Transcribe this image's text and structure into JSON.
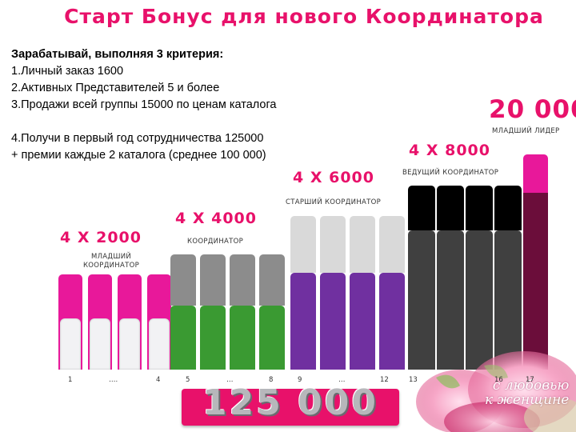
{
  "title": "Старт Бонус для нового Координатора",
  "criteria": {
    "heading": "Зарабатывай, выполняя 3 критерия:",
    "lines": [
      "1.Личный заказ 1600",
      "2.Активных Представителей 5 и более",
      "3.Продажи всей группы 15000 по ценам каталога"
    ],
    "extra": [
      "4.Получи в первый год сотрудничества 125000",
      "+ премии каждые 2 каталога (среднее 100 000)"
    ]
  },
  "groups": [
    {
      "bonus": "4 X 2000",
      "rank": "МЛАДШИЙ КООРДИНАТОР",
      "color_top": "#e8189a",
      "color_bottom": "#f2f2f4"
    },
    {
      "bonus": "4 X 4000",
      "rank": "КООРДИНАТОР",
      "color_top": "#8c8c8c",
      "color_bottom": "#3a9a32"
    },
    {
      "bonus": "4 X 6000",
      "rank": "СТАРШИЙ КООРДИНАТОР",
      "color_top": "#d9d9d9",
      "color_bottom": "#7030a0"
    },
    {
      "bonus": "4 X 8000",
      "rank": "ВЕДУЩИЙ КООРДИНАТОР",
      "color_top": "#000000",
      "color_bottom": "#404040"
    }
  ],
  "final": {
    "bonus": "20 000",
    "rank": "МЛАДШИЙ ЛИДЕР",
    "color_top": "#e8189a",
    "color_bottom": "#6b0d3a"
  },
  "axis_labels": [
    "1",
    "….",
    "4",
    "5",
    "…",
    "8",
    "9",
    "…",
    "12",
    "13",
    "16",
    "17"
  ],
  "total": "125 000",
  "logo": {
    "line1": "с любовью",
    "line2": "к женщине"
  },
  "colors": {
    "accent": "#e8116a"
  }
}
